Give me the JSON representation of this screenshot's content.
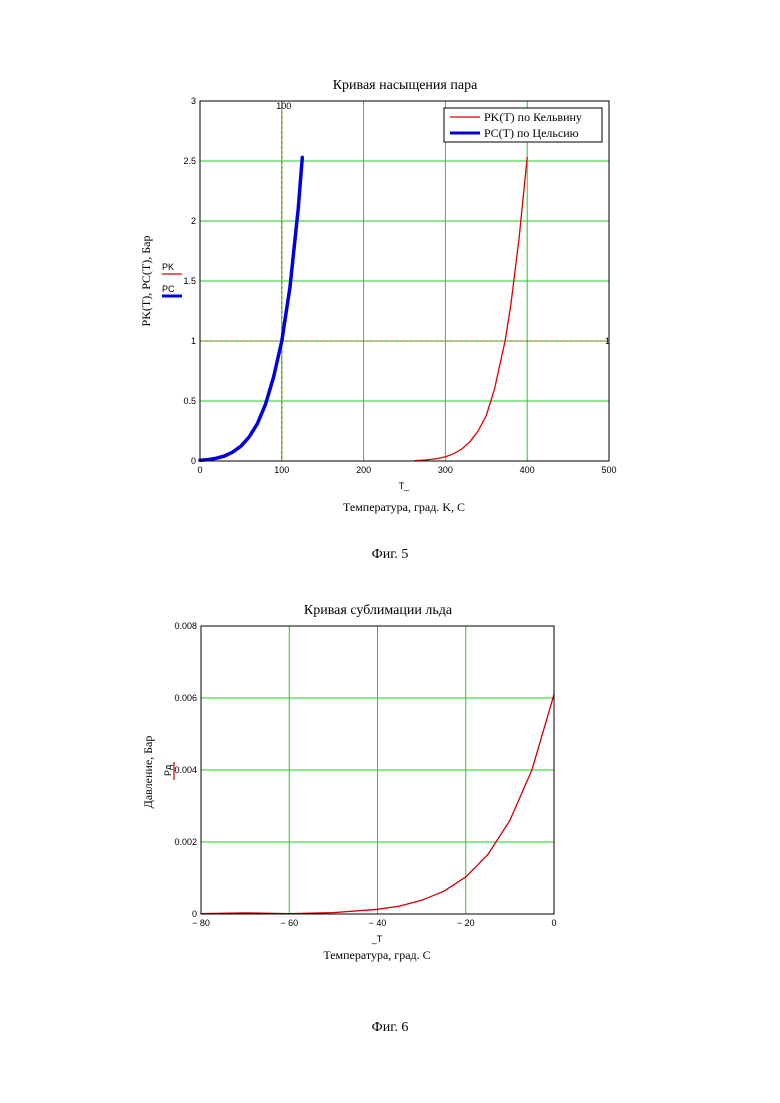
{
  "chart_data": [
    {
      "type": "line",
      "title": "Кривая насыщения пара",
      "xlabel": "Температура, град. K, C",
      "xvar": "T_",
      "ylabel": "PK(T), PC(T), Бар",
      "ylabel_traces": [
        "PK",
        "PC"
      ],
      "xlim": [
        0,
        500
      ],
      "ylim": [
        0,
        3
      ],
      "xticks": [
        "0",
        "100",
        "200",
        "300",
        "400",
        "500"
      ],
      "yticks": [
        "0",
        "0.5",
        "1",
        "1.5",
        "2",
        "2.5",
        "3"
      ],
      "grid": true,
      "legend": "top-right",
      "markers": {
        "vertical_x": 100,
        "vertical_label": "100",
        "horizontal_y": 1,
        "horizontal_label": "1"
      },
      "series": [
        {
          "name": "PK(T) по Кельвину",
          "color": "#dd0000",
          "x": [
            263,
            275,
            290,
            300,
            310,
            320,
            330,
            340,
            350,
            360,
            373,
            380,
            390,
            400
          ],
          "y": [
            0.003,
            0.008,
            0.02,
            0.035,
            0.06,
            0.1,
            0.16,
            0.25,
            0.38,
            0.6,
            1.0,
            1.3,
            1.85,
            2.53
          ]
        },
        {
          "name": "PC(T) по Цельсию",
          "color": "#0000dd",
          "x": [
            0,
            10,
            20,
            30,
            40,
            50,
            60,
            70,
            80,
            90,
            100,
            110,
            120,
            125
          ],
          "y": [
            0.006,
            0.012,
            0.023,
            0.042,
            0.074,
            0.123,
            0.2,
            0.31,
            0.47,
            0.7,
            1.0,
            1.45,
            2.1,
            2.53
          ]
        }
      ]
    },
    {
      "type": "line",
      "title": "Кривая сублимации льда",
      "xlabel": "Температура, град. C",
      "xvar": "_T",
      "ylabel": "Давление, Бар",
      "ylabel_traces": [
        "Pд"
      ],
      "xlim": [
        -80,
        0
      ],
      "ylim": [
        0,
        0.008
      ],
      "xticks": [
        "− 80",
        "− 60",
        "− 40",
        "− 20",
        "0"
      ],
      "yticks": [
        "0",
        "0.002",
        "0.004",
        "0.006",
        "0.008"
      ],
      "grid": true,
      "series": [
        {
          "name": "",
          "color": "#cc0000",
          "x": [
            -80,
            -70,
            -60,
            -50,
            -40,
            -35,
            -30,
            -25,
            -20,
            -15,
            -10,
            -5,
            0
          ],
          "y": [
            1e-05,
            3e-05,
            1e-05,
            4e-05,
            0.00013,
            0.00022,
            0.00038,
            0.00063,
            0.00103,
            0.00165,
            0.0026,
            0.004,
            0.0061
          ]
        }
      ]
    }
  ],
  "captions": [
    "Фиг. 5",
    "Фиг. 6"
  ]
}
